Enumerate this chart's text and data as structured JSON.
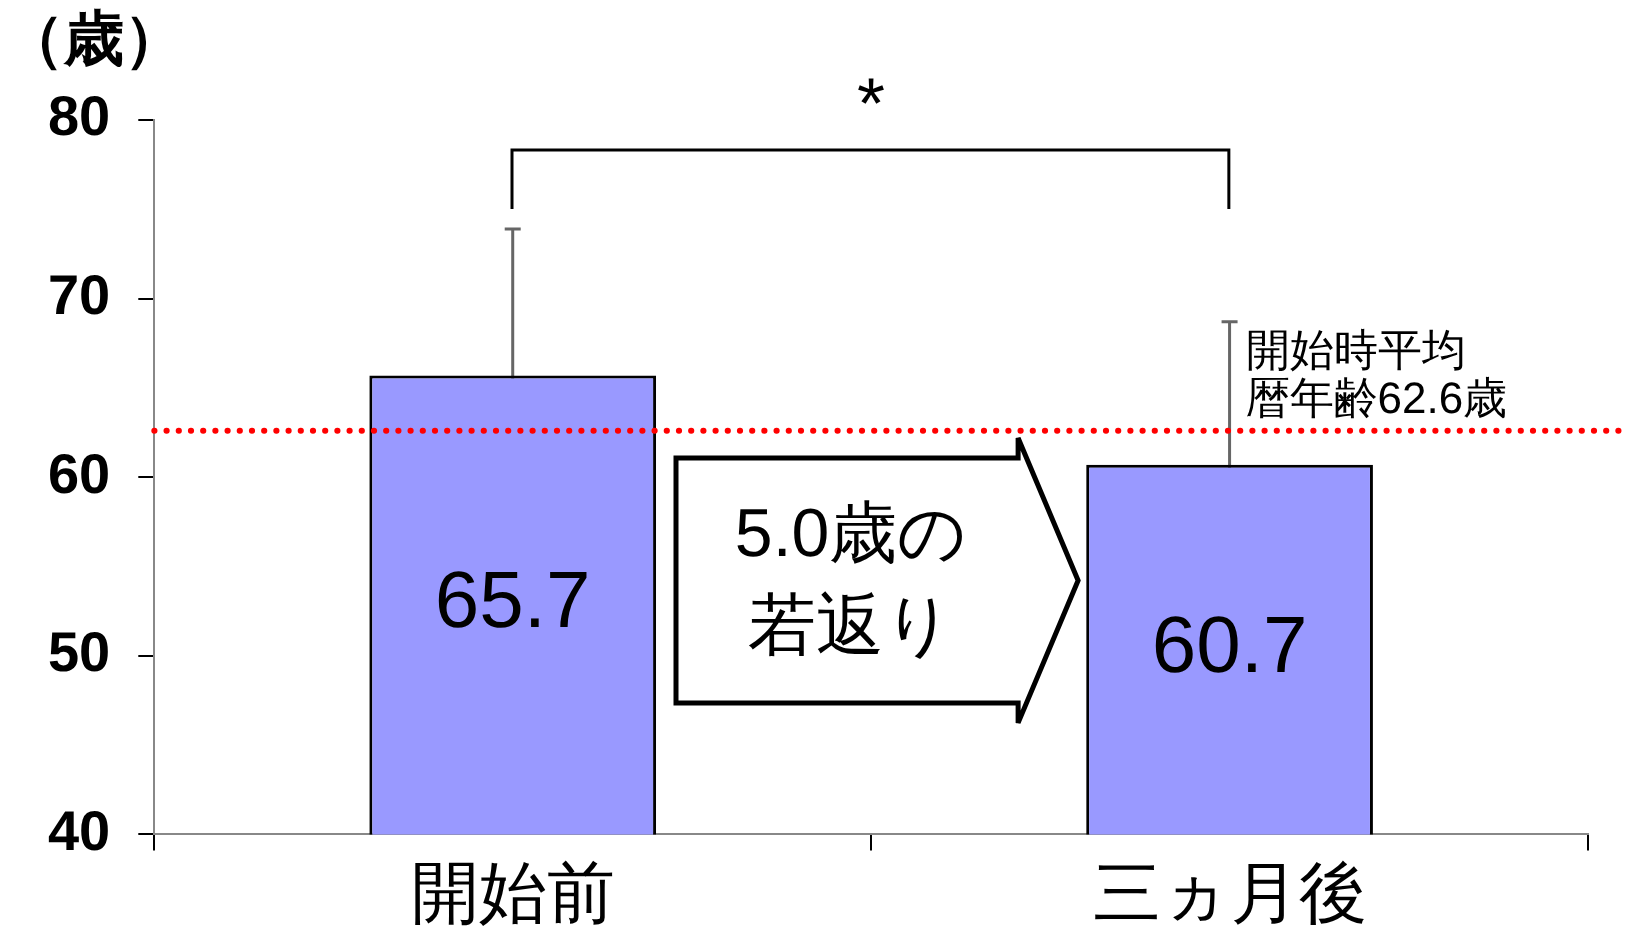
{
  "chart_data": {
    "type": "bar",
    "ylabel": "（歳）",
    "categories": [
      "開始前",
      "三ヵ月後"
    ],
    "values": [
      65.7,
      60.7
    ],
    "errors": [
      8.2,
      8.0
    ],
    "color": "#9999ff",
    "data_labels": true,
    "ylim": [
      40,
      80
    ],
    "yticks": [
      40,
      50,
      60,
      70,
      80
    ],
    "grid": false,
    "legend": false,
    "ref_lines": [
      {
        "axis": "y",
        "value": 62.6,
        "label": "開始時平均暦年齢62.6歳",
        "color": "#ff0000",
        "line_style": "dotted"
      }
    ],
    "annotations": [
      "*",
      "5.0歳の若返り"
    ]
  }
}
